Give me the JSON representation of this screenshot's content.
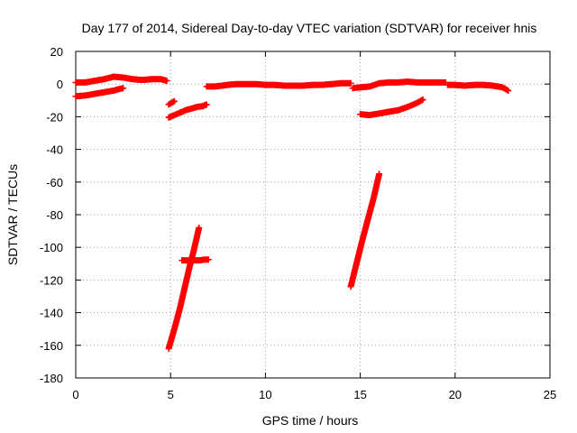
{
  "chart_data": {
    "type": "scatter",
    "title": "Day 177 of 2014, Sidereal Day-to-day VTEC variation (SDTVAR) for receiver hnis",
    "xlabel": "GPS time / hours",
    "ylabel": "SDTVAR / TECUs",
    "xlim": [
      0,
      25
    ],
    "ylim": [
      -180,
      20
    ],
    "xticks": [
      "0",
      "5",
      "10",
      "15",
      "20",
      "25"
    ],
    "yticks": [
      "20",
      "0",
      "-20",
      "-40",
      "-60",
      "-80",
      "-100",
      "-120",
      "-140",
      "-160",
      "-180"
    ],
    "grid": true,
    "marker": "plus",
    "color": "#ff0000",
    "series": [
      {
        "segments": [
          [
            [
              0.0,
              1.0
            ],
            [
              0.5,
              1.0
            ],
            [
              1.0,
              2.0
            ],
            [
              1.5,
              3.0
            ],
            [
              2.0,
              4.5
            ],
            [
              2.5,
              4.0
            ],
            [
              3.0,
              3.0
            ],
            [
              3.5,
              2.5
            ],
            [
              4.0,
              3.0
            ],
            [
              4.5,
              3.0
            ],
            [
              4.8,
              2.0
            ]
          ],
          [
            [
              0.0,
              -7.5
            ],
            [
              0.5,
              -7.0
            ],
            [
              1.0,
              -6.0
            ],
            [
              1.5,
              -5.0
            ],
            [
              2.0,
              -4.0
            ],
            [
              2.3,
              -3.0
            ],
            [
              2.5,
              -2.5
            ]
          ],
          [
            [
              4.9,
              -12.5
            ],
            [
              5.2,
              -10.5
            ]
          ],
          [
            [
              4.9,
              -20.5
            ],
            [
              5.2,
              -19.0
            ],
            [
              5.5,
              -17.5
            ],
            [
              5.8,
              -16.0
            ],
            [
              6.1,
              -15.0
            ],
            [
              6.4,
              -14.0
            ],
            [
              6.7,
              -13.5
            ],
            [
              6.9,
              -12.5
            ]
          ],
          [
            [
              4.9,
              -162
            ],
            [
              5.2,
              -150
            ],
            [
              5.5,
              -137
            ],
            [
              5.8,
              -122
            ],
            [
              6.0,
              -112
            ],
            [
              6.2,
              -103
            ],
            [
              6.4,
              -93
            ],
            [
              6.5,
              -88
            ]
          ],
          [
            [
              5.6,
              -108
            ],
            [
              5.9,
              -108
            ],
            [
              6.2,
              -108
            ],
            [
              6.5,
              -108
            ],
            [
              6.8,
              -107.5
            ],
            [
              7.0,
              -107.5
            ]
          ],
          [
            [
              6.9,
              -1.5
            ],
            [
              7.3,
              -1.5
            ],
            [
              7.7,
              -1.0
            ],
            [
              8.0,
              -0.5
            ],
            [
              8.5,
              0.0
            ],
            [
              9.0,
              0.0
            ],
            [
              9.5,
              0.0
            ],
            [
              10.0,
              -0.5
            ],
            [
              10.5,
              -0.5
            ],
            [
              11.0,
              -1.0
            ],
            [
              11.5,
              -1.0
            ],
            [
              12.0,
              -1.0
            ],
            [
              12.5,
              -0.5
            ],
            [
              13.0,
              -0.5
            ],
            [
              13.5,
              0.0
            ],
            [
              14.0,
              0.5
            ],
            [
              14.5,
              0.5
            ]
          ],
          [
            [
              14.6,
              -2.5
            ],
            [
              15.0,
              -2.0
            ],
            [
              15.5,
              -1.5
            ],
            [
              16.0,
              0.5
            ],
            [
              16.5,
              1.0
            ],
            [
              17.0,
              1.0
            ],
            [
              17.5,
              1.5
            ],
            [
              18.0,
              1.0
            ],
            [
              18.5,
              1.0
            ],
            [
              19.0,
              1.0
            ],
            [
              19.5,
              1.0
            ]
          ],
          [
            [
              19.6,
              -0.5
            ],
            [
              20.0,
              -0.5
            ],
            [
              20.5,
              -1.0
            ],
            [
              21.0,
              -0.5
            ],
            [
              21.5,
              -0.5
            ],
            [
              22.0,
              -1.0
            ],
            [
              22.5,
              -2.0
            ],
            [
              22.8,
              -4.0
            ]
          ],
          [
            [
              15.0,
              -18.5
            ],
            [
              15.5,
              -19.0
            ],
            [
              16.0,
              -18.0
            ],
            [
              16.5,
              -17.0
            ],
            [
              17.0,
              -16.0
            ],
            [
              17.5,
              -14.0
            ],
            [
              18.0,
              -11.5
            ],
            [
              18.3,
              -9.5
            ]
          ],
          [
            [
              14.5,
              -124
            ],
            [
              14.8,
              -110
            ],
            [
              15.1,
              -96
            ],
            [
              15.4,
              -83
            ],
            [
              15.7,
              -70
            ],
            [
              16.0,
              -55
            ]
          ]
        ]
      }
    ]
  }
}
